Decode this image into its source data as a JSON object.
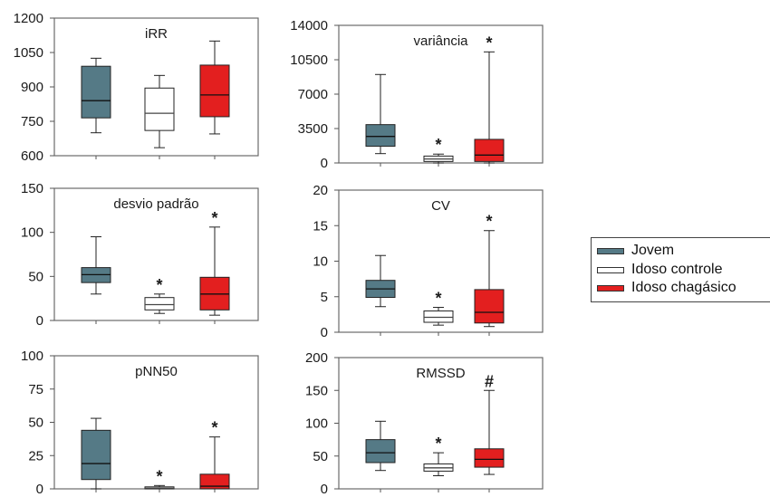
{
  "colors": {
    "Jovem": "#557a86",
    "Idoso controle": "#ffffff",
    "Idoso chagásico": "#e31f1f"
  },
  "legend": {
    "items": [
      "Jovem",
      "Idoso controle",
      "Idoso chagásico"
    ]
  },
  "chart_data": [
    {
      "type": "box",
      "title": "iRR",
      "ylim": [
        600,
        1200
      ],
      "yticks": [
        600,
        750,
        900,
        1050,
        1200
      ],
      "tick_labels": [
        "600",
        "750",
        "900",
        "1050",
        "1200"
      ],
      "series": [
        {
          "name": "Jovem",
          "whisker_low": 700,
          "q1": 765,
          "median": 840,
          "q3": 990,
          "whisker_high": 1025,
          "markers": []
        },
        {
          "name": "Idoso controle",
          "whisker_low": 635,
          "q1": 710,
          "median": 785,
          "q3": 895,
          "whisker_high": 950,
          "markers": []
        },
        {
          "name": "Idoso chagásico",
          "whisker_low": 695,
          "q1": 770,
          "median": 865,
          "q3": 995,
          "whisker_high": 1100,
          "markers": []
        }
      ]
    },
    {
      "type": "box",
      "title": "variância",
      "ylim": [
        0,
        14000
      ],
      "yticks": [
        0,
        3500,
        7000,
        10500,
        14000
      ],
      "tick_labels": [
        "0",
        "3500",
        "7000",
        "10500",
        "14000"
      ],
      "series": [
        {
          "name": "Jovem",
          "whisker_low": 950,
          "q1": 1700,
          "median": 2700,
          "q3": 3900,
          "whisker_high": 9000,
          "markers": []
        },
        {
          "name": "Idoso controle",
          "whisker_low": 0,
          "q1": 150,
          "median": 400,
          "q3": 700,
          "whisker_high": 900,
          "markers": [
            "*"
          ]
        },
        {
          "name": "Idoso chagásico",
          "whisker_low": 0,
          "q1": 150,
          "median": 800,
          "q3": 2400,
          "whisker_high": 11300,
          "markers": [
            "*"
          ]
        }
      ]
    },
    {
      "type": "box",
      "title": "desvio padrão",
      "ylim": [
        0,
        150
      ],
      "yticks": [
        0,
        50,
        100,
        150
      ],
      "tick_labels": [
        "0",
        "50",
        "100",
        "150"
      ],
      "series": [
        {
          "name": "Jovem",
          "whisker_low": 30,
          "q1": 43,
          "median": 52,
          "q3": 60,
          "whisker_high": 95,
          "markers": []
        },
        {
          "name": "Idoso controle",
          "whisker_low": 8,
          "q1": 12,
          "median": 18,
          "q3": 26,
          "whisker_high": 30,
          "markers": [
            "*"
          ]
        },
        {
          "name": "Idoso chagásico",
          "whisker_low": 6,
          "q1": 12,
          "median": 30,
          "q3": 49,
          "whisker_high": 106,
          "markers": [
            "*"
          ]
        }
      ]
    },
    {
      "type": "box",
      "title": "CV",
      "ylim": [
        0,
        20
      ],
      "yticks": [
        0,
        5,
        10,
        15,
        20
      ],
      "tick_labels": [
        "0",
        "5",
        "10",
        "15",
        "20"
      ],
      "series": [
        {
          "name": "Jovem",
          "whisker_low": 3.6,
          "q1": 4.9,
          "median": 6.1,
          "q3": 7.3,
          "whisker_high": 10.8,
          "markers": []
        },
        {
          "name": "Idoso controle",
          "whisker_low": 1.0,
          "q1": 1.4,
          "median": 2.1,
          "q3": 3.0,
          "whisker_high": 3.5,
          "markers": [
            "*"
          ]
        },
        {
          "name": "Idoso chagásico",
          "whisker_low": 0.8,
          "q1": 1.3,
          "median": 2.8,
          "q3": 6.0,
          "whisker_high": 14.3,
          "markers": [
            "*"
          ]
        }
      ]
    },
    {
      "type": "box",
      "title": "pNN50",
      "ylim": [
        0,
        100
      ],
      "yticks": [
        0,
        25,
        50,
        75,
        100
      ],
      "tick_labels": [
        "0",
        "25",
        "50",
        "75",
        "100"
      ],
      "series": [
        {
          "name": "Jovem",
          "whisker_low": 0,
          "q1": 7,
          "median": 19,
          "q3": 44,
          "whisker_high": 53,
          "markers": []
        },
        {
          "name": "Idoso controle",
          "whisker_low": 0,
          "q1": 0,
          "median": 0.5,
          "q3": 1.5,
          "whisker_high": 2.5,
          "markers": [
            "*"
          ]
        },
        {
          "name": "Idoso chagásico",
          "whisker_low": 0,
          "q1": 0,
          "median": 2,
          "q3": 11,
          "whisker_high": 39,
          "markers": [
            "*"
          ]
        }
      ]
    },
    {
      "type": "box",
      "title": "RMSSD",
      "ylim": [
        0,
        200
      ],
      "yticks": [
        0,
        50,
        100,
        150,
        200
      ],
      "tick_labels": [
        "0",
        "50",
        "100",
        "150",
        "200"
      ],
      "series": [
        {
          "name": "Jovem",
          "whisker_low": 28,
          "q1": 40,
          "median": 55,
          "q3": 75,
          "whisker_high": 103,
          "markers": []
        },
        {
          "name": "Idoso controle",
          "whisker_low": 20,
          "q1": 27,
          "median": 32,
          "q3": 38,
          "whisker_high": 55,
          "markers": [
            "*"
          ]
        },
        {
          "name": "Idoso chagásico",
          "whisker_low": 22,
          "q1": 33,
          "median": 45,
          "q3": 61,
          "whisker_high": 150,
          "markers": [
            "#"
          ]
        }
      ]
    }
  ]
}
